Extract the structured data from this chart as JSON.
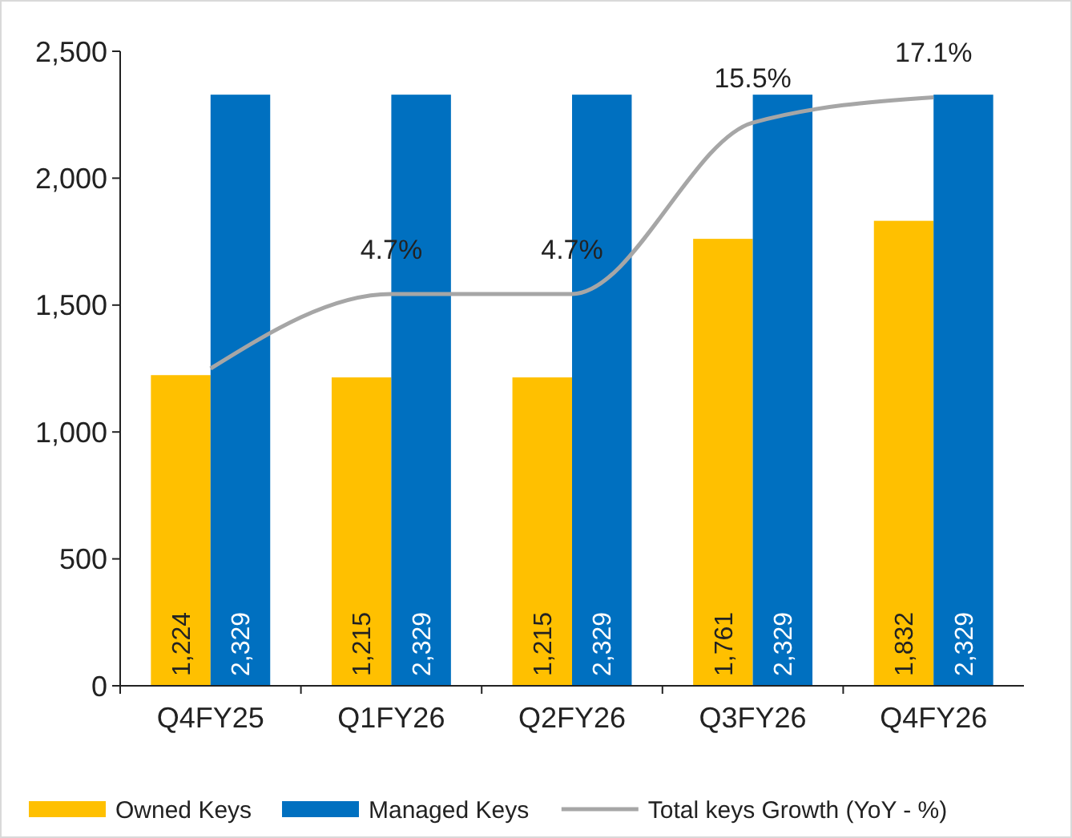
{
  "chart_data": {
    "type": "bar",
    "categories": [
      "Q4FY25",
      "Q1FY26",
      "Q2FY26",
      "Q3FY26",
      "Q4FY26"
    ],
    "series": [
      {
        "name": "Owned Keys",
        "color": "#ffc000",
        "values": [
          1224,
          1215,
          1215,
          1761,
          1832
        ],
        "value_labels": [
          "1,224",
          "1,215",
          "1,215",
          "1,761",
          "1,832"
        ]
      },
      {
        "name": "Managed Keys",
        "color": "#0070c0",
        "values": [
          2329,
          2329,
          2329,
          2329,
          2329
        ],
        "value_labels": [
          "2,329",
          "2,329",
          "2,329",
          "2,329",
          "2,329"
        ]
      },
      {
        "name": "Total keys Growth (YoY - %)",
        "type": "line",
        "axis": "y2",
        "color": "#a6a6a6",
        "values": [
          0,
          4.7,
          4.7,
          15.5,
          17.1
        ],
        "value_labels": [
          null,
          "4.7%",
          "4.7%",
          "15.5%",
          "17.1%"
        ]
      }
    ],
    "ylim": [
      0,
      2500
    ],
    "yticks": [
      {
        "value": 0,
        "label": "0"
      },
      {
        "value": 500,
        "label": "500"
      },
      {
        "value": 1000,
        "label": "1,000"
      },
      {
        "value": 1500,
        "label": "1,500"
      },
      {
        "value": 2000,
        "label": "2,000"
      },
      {
        "value": 2500,
        "label": "2,500"
      }
    ],
    "y2lim": [
      -20,
      20
    ],
    "grid": false,
    "legend": "bottom",
    "marker": "none",
    "line_style": "solid"
  }
}
